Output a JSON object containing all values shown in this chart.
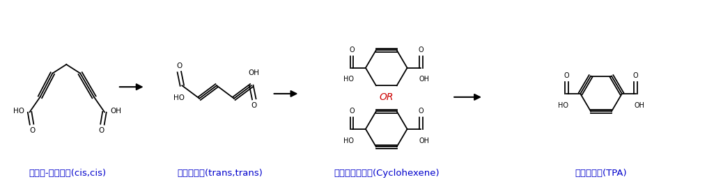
{
  "background": "#ffffff",
  "label1": "바이오-뮤코닉산(cis,cis)",
  "label2": "이성화산물(trans,trans)",
  "label3": "부가고리화산물(Cyclohexene)",
  "label4": "테레프탈산(TPA)",
  "label_color": "#0000cc",
  "label_fontsize": 9.5,
  "arrow_color": "#000000",
  "bond_color": "#000000",
  "or_color": "#cc0000",
  "or_fontsize": 10,
  "figsize": [
    10.15,
    2.65
  ],
  "dpi": 100
}
